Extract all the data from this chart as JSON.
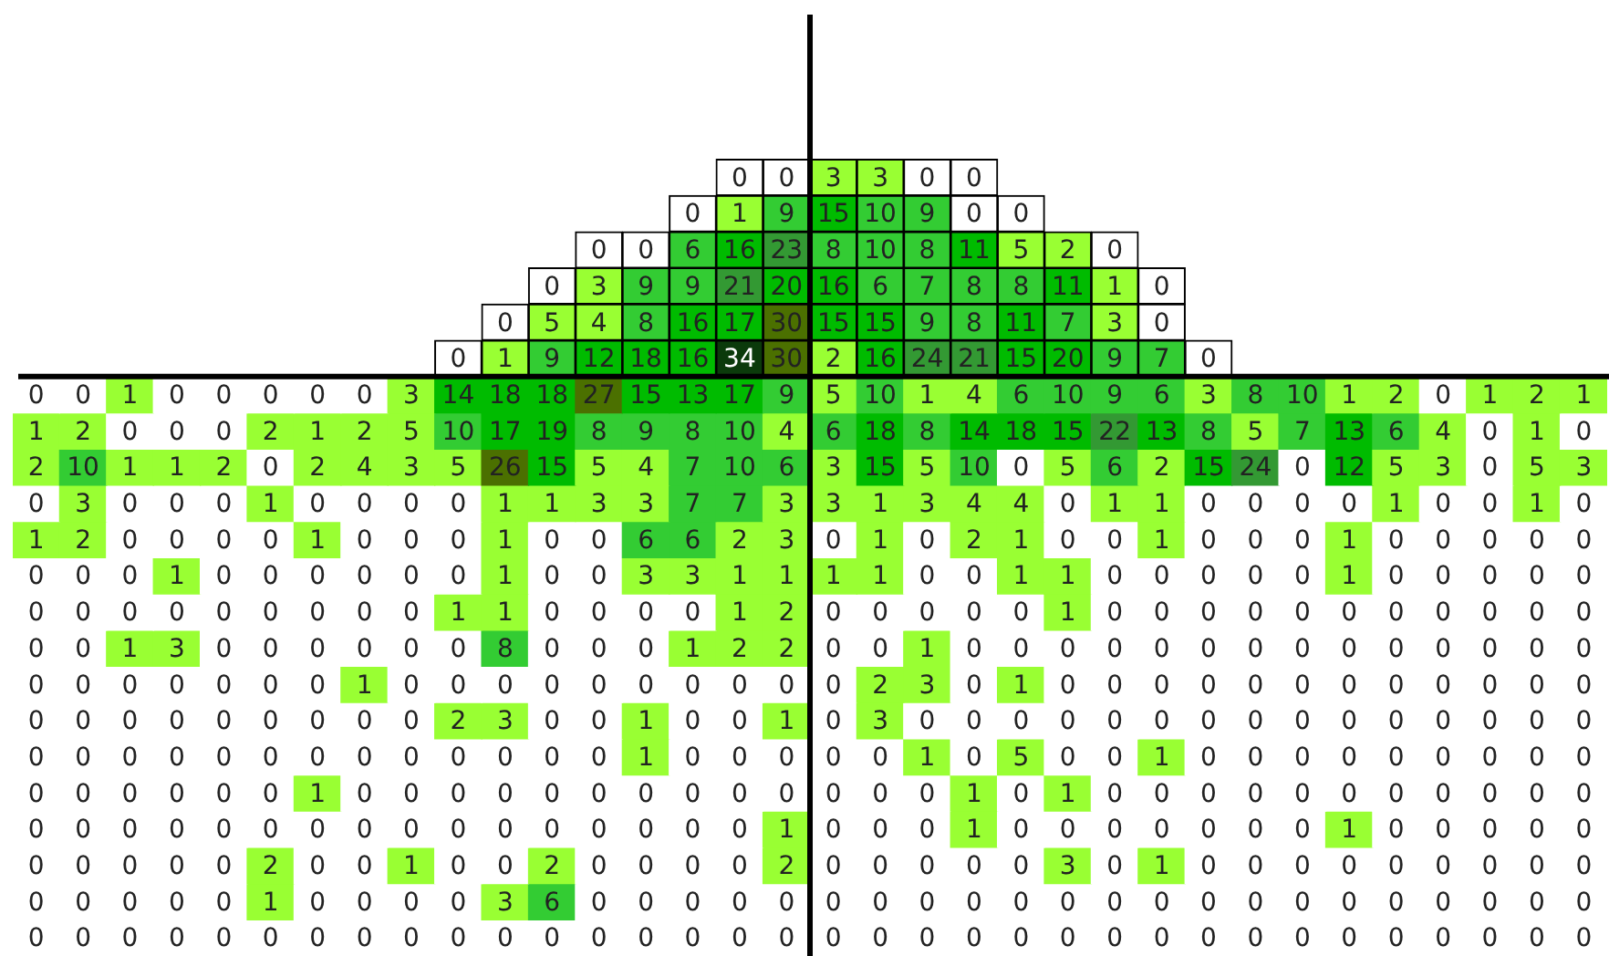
{
  "chart_data": {
    "type": "heatmap",
    "tick_labels": false,
    "data_labels": true,
    "categories": [
      null,
      null,
      null,
      null,
      null,
      null,
      null,
      null,
      null,
      null,
      null,
      null,
      null,
      null,
      null,
      null,
      null,
      null,
      null,
      null,
      null,
      null,
      null,
      null,
      null,
      null,
      null,
      null,
      null,
      null,
      null,
      null,
      null,
      null
    ],
    "y_categories": [
      null,
      null,
      null,
      null,
      null,
      null,
      null,
      null,
      null,
      null,
      null,
      null,
      null,
      null,
      null,
      null,
      null,
      null,
      null,
      null,
      null,
      null
    ],
    "cells": [
      [
        null,
        null,
        null,
        null,
        null,
        null,
        null,
        null,
        null,
        null,
        null,
        null,
        null,
        null,
        null,
        0,
        0,
        3,
        3,
        0,
        0,
        null,
        null,
        null,
        null,
        null,
        null,
        null,
        null,
        null,
        null,
        null,
        null,
        null
      ],
      [
        null,
        null,
        null,
        null,
        null,
        null,
        null,
        null,
        null,
        null,
        null,
        null,
        null,
        null,
        0,
        1,
        9,
        15,
        10,
        9,
        0,
        0,
        null,
        null,
        null,
        null,
        null,
        null,
        null,
        null,
        null,
        null,
        null,
        null
      ],
      [
        null,
        null,
        null,
        null,
        null,
        null,
        null,
        null,
        null,
        null,
        null,
        null,
        0,
        0,
        6,
        16,
        23,
        8,
        10,
        8,
        11,
        5,
        2,
        0,
        null,
        null,
        null,
        null,
        null,
        null,
        null,
        null,
        null,
        null
      ],
      [
        null,
        null,
        null,
        null,
        null,
        null,
        null,
        null,
        null,
        null,
        null,
        0,
        3,
        9,
        9,
        21,
        20,
        16,
        6,
        7,
        8,
        8,
        11,
        1,
        0,
        null,
        null,
        null,
        null,
        null,
        null,
        null,
        null,
        null
      ],
      [
        null,
        null,
        null,
        null,
        null,
        null,
        null,
        null,
        null,
        null,
        0,
        5,
        4,
        8,
        16,
        17,
        30,
        15,
        15,
        9,
        8,
        11,
        7,
        3,
        0,
        null,
        null,
        null,
        null,
        null,
        null,
        null,
        null,
        null
      ],
      [
        null,
        null,
        null,
        null,
        null,
        null,
        null,
        null,
        null,
        0,
        1,
        9,
        12,
        18,
        16,
        34,
        30,
        2,
        16,
        24,
        21,
        15,
        20,
        9,
        7,
        0,
        null,
        null,
        null,
        null,
        null,
        null,
        null,
        null
      ],
      [
        0,
        0,
        1,
        0,
        0,
        0,
        0,
        0,
        3,
        14,
        18,
        18,
        27,
        15,
        13,
        17,
        9,
        5,
        10,
        1,
        4,
        6,
        10,
        9,
        6,
        3,
        8,
        10,
        1,
        2,
        0,
        1,
        2,
        1
      ],
      [
        1,
        2,
        0,
        0,
        0,
        2,
        1,
        2,
        5,
        10,
        17,
        19,
        8,
        9,
        8,
        10,
        4,
        6,
        18,
        8,
        14,
        18,
        15,
        22,
        13,
        8,
        5,
        7,
        13,
        6,
        4,
        0,
        1,
        0
      ],
      [
        2,
        10,
        1,
        1,
        2,
        0,
        2,
        4,
        3,
        5,
        26,
        15,
        5,
        4,
        7,
        10,
        6,
        3,
        15,
        5,
        10,
        0,
        5,
        6,
        2,
        15,
        24,
        0,
        12,
        5,
        3,
        0,
        5,
        3
      ],
      [
        0,
        3,
        0,
        0,
        0,
        1,
        0,
        0,
        0,
        0,
        1,
        1,
        3,
        3,
        7,
        7,
        3,
        3,
        1,
        3,
        4,
        4,
        0,
        1,
        1,
        0,
        0,
        0,
        0,
        1,
        0,
        0,
        1,
        0
      ],
      [
        1,
        2,
        0,
        0,
        0,
        0,
        1,
        0,
        0,
        0,
        1,
        0,
        0,
        6,
        6,
        2,
        3,
        0,
        1,
        0,
        2,
        1,
        0,
        0,
        1,
        0,
        0,
        0,
        1,
        0,
        0,
        0,
        0,
        0
      ],
      [
        0,
        0,
        0,
        1,
        0,
        0,
        0,
        0,
        0,
        0,
        1,
        0,
        0,
        3,
        3,
        1,
        1,
        1,
        1,
        0,
        0,
        1,
        1,
        0,
        0,
        0,
        0,
        0,
        1,
        0,
        0,
        0,
        0,
        0
      ],
      [
        0,
        0,
        0,
        0,
        0,
        0,
        0,
        0,
        0,
        1,
        1,
        0,
        0,
        0,
        0,
        1,
        2,
        0,
        0,
        0,
        0,
        0,
        1,
        0,
        0,
        0,
        0,
        0,
        0,
        0,
        0,
        0,
        0,
        0
      ],
      [
        0,
        0,
        1,
        3,
        0,
        0,
        0,
        0,
        0,
        0,
        8,
        0,
        0,
        0,
        1,
        2,
        2,
        0,
        0,
        1,
        0,
        0,
        0,
        0,
        0,
        0,
        0,
        0,
        0,
        0,
        0,
        0,
        0,
        0
      ],
      [
        0,
        0,
        0,
        0,
        0,
        0,
        0,
        1,
        0,
        0,
        0,
        0,
        0,
        0,
        0,
        0,
        0,
        0,
        2,
        3,
        0,
        1,
        0,
        0,
        0,
        0,
        0,
        0,
        0,
        0,
        0,
        0,
        0,
        0
      ],
      [
        0,
        0,
        0,
        0,
        0,
        0,
        0,
        0,
        0,
        2,
        3,
        0,
        0,
        1,
        0,
        0,
        1,
        0,
        3,
        0,
        0,
        0,
        0,
        0,
        0,
        0,
        0,
        0,
        0,
        0,
        0,
        0,
        0,
        0
      ],
      [
        0,
        0,
        0,
        0,
        0,
        0,
        0,
        0,
        0,
        0,
        0,
        0,
        0,
        1,
        0,
        0,
        0,
        0,
        0,
        1,
        0,
        5,
        0,
        0,
        1,
        0,
        0,
        0,
        0,
        0,
        0,
        0,
        0,
        0
      ],
      [
        0,
        0,
        0,
        0,
        0,
        0,
        1,
        0,
        0,
        0,
        0,
        0,
        0,
        0,
        0,
        0,
        0,
        0,
        0,
        0,
        1,
        0,
        1,
        0,
        0,
        0,
        0,
        0,
        0,
        0,
        0,
        0,
        0,
        0
      ],
      [
        0,
        0,
        0,
        0,
        0,
        0,
        0,
        0,
        0,
        0,
        0,
        0,
        0,
        0,
        0,
        0,
        1,
        0,
        0,
        0,
        1,
        0,
        0,
        0,
        0,
        0,
        0,
        0,
        1,
        0,
        0,
        0,
        0,
        0
      ],
      [
        0,
        0,
        0,
        0,
        0,
        2,
        0,
        0,
        1,
        0,
        0,
        2,
        0,
        0,
        0,
        0,
        2,
        0,
        0,
        0,
        0,
        0,
        3,
        0,
        1,
        0,
        0,
        0,
        0,
        0,
        0,
        0,
        0,
        0
      ],
      [
        0,
        0,
        0,
        0,
        0,
        1,
        0,
        0,
        0,
        0,
        3,
        6,
        0,
        0,
        0,
        0,
        0,
        0,
        0,
        0,
        0,
        0,
        0,
        0,
        0,
        0,
        0,
        0,
        0,
        0,
        0,
        0,
        0,
        0
      ],
      [
        0,
        0,
        0,
        0,
        0,
        0,
        0,
        0,
        0,
        0,
        0,
        0,
        0,
        0,
        0,
        0,
        0,
        0,
        0,
        0,
        0,
        0,
        0,
        0,
        0,
        0,
        0,
        0,
        0,
        0,
        0,
        0,
        0,
        0
      ]
    ]
  }
}
